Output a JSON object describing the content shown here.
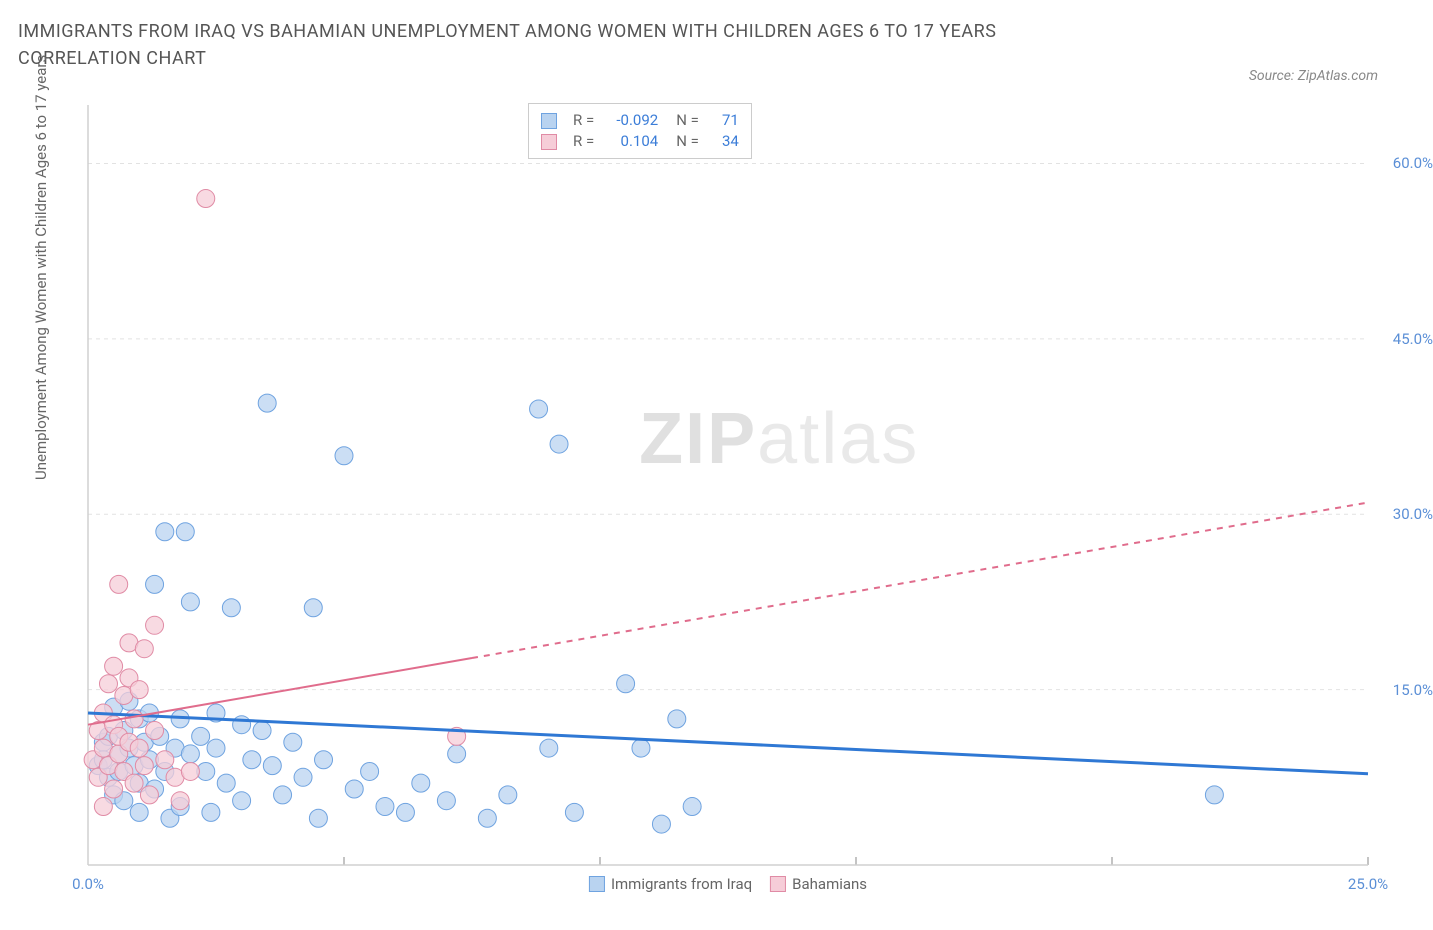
{
  "title": "IMMIGRANTS FROM IRAQ VS BAHAMIAN UNEMPLOYMENT AMONG WOMEN WITH CHILDREN AGES 6 TO 17 YEARS CORRELATION CHART",
  "source": "Source: ZipAtlas.com",
  "watermark_zip": "ZIP",
  "watermark_atlas": "atlas",
  "y_axis_label": "Unemployment Among Women with Children Ages 6 to 17 years",
  "chart": {
    "type": "scatter-with-trendlines",
    "background_color": "#ffffff",
    "grid_color": "#e2e2e2",
    "axis_color": "#d0d0d0",
    "tick_color": "#888",
    "tick_label_color": "#5b8fd6",
    "xlim": [
      0,
      25
    ],
    "ylim": [
      0,
      65
    ],
    "x_ticks": [
      0,
      5,
      10,
      15,
      20,
      25
    ],
    "x_tick_labels": {
      "0": "0.0%",
      "25": "25.0%"
    },
    "y_ticks": [
      15,
      30,
      45,
      60
    ],
    "y_tick_labels": {
      "15": "15.0%",
      "30": "30.0%",
      "45": "45.0%",
      "60": "60.0%"
    },
    "series": [
      {
        "name": "Immigrants from Iraq",
        "color_fill": "#b9d3f0",
        "color_stroke": "#6fa3e0",
        "marker_radius": 9,
        "trend": {
          "color": "#2f78d4",
          "width": 3,
          "x1": 0,
          "y1": 13.0,
          "x2": 25,
          "y2": 7.8,
          "dash_after_x": null
        },
        "stats": {
          "R": "-0.092",
          "N": "71"
        },
        "points": [
          [
            0.2,
            8.5
          ],
          [
            0.3,
            10.5
          ],
          [
            0.3,
            9.0
          ],
          [
            0.4,
            7.5
          ],
          [
            0.4,
            11.0
          ],
          [
            0.5,
            13.5
          ],
          [
            0.5,
            6.0
          ],
          [
            0.6,
            9.5
          ],
          [
            0.6,
            8.0
          ],
          [
            0.7,
            11.5
          ],
          [
            0.7,
            5.5
          ],
          [
            0.8,
            10.0
          ],
          [
            0.8,
            14.0
          ],
          [
            0.9,
            8.5
          ],
          [
            1.0,
            12.5
          ],
          [
            1.0,
            4.5
          ],
          [
            1.0,
            7.0
          ],
          [
            1.1,
            10.5
          ],
          [
            1.2,
            9.0
          ],
          [
            1.2,
            13.0
          ],
          [
            1.3,
            24.0
          ],
          [
            1.3,
            6.5
          ],
          [
            1.4,
            11.0
          ],
          [
            1.5,
            8.0
          ],
          [
            1.5,
            28.5
          ],
          [
            1.6,
            4.0
          ],
          [
            1.7,
            10.0
          ],
          [
            1.8,
            12.5
          ],
          [
            1.8,
            5.0
          ],
          [
            1.9,
            28.5
          ],
          [
            2.0,
            9.5
          ],
          [
            2.0,
            22.5
          ],
          [
            2.2,
            11.0
          ],
          [
            2.3,
            8.0
          ],
          [
            2.4,
            4.5
          ],
          [
            2.5,
            13.0
          ],
          [
            2.5,
            10.0
          ],
          [
            2.7,
            7.0
          ],
          [
            2.8,
            22.0
          ],
          [
            3.0,
            12.0
          ],
          [
            3.0,
            5.5
          ],
          [
            3.2,
            9.0
          ],
          [
            3.4,
            11.5
          ],
          [
            3.5,
            39.5
          ],
          [
            3.6,
            8.5
          ],
          [
            3.8,
            6.0
          ],
          [
            4.0,
            10.5
          ],
          [
            4.2,
            7.5
          ],
          [
            4.4,
            22.0
          ],
          [
            4.5,
            4.0
          ],
          [
            4.6,
            9.0
          ],
          [
            5.0,
            35.0
          ],
          [
            5.2,
            6.5
          ],
          [
            5.5,
            8.0
          ],
          [
            5.8,
            5.0
          ],
          [
            6.2,
            4.5
          ],
          [
            6.5,
            7.0
          ],
          [
            7.0,
            5.5
          ],
          [
            7.2,
            9.5
          ],
          [
            7.8,
            4.0
          ],
          [
            8.2,
            6.0
          ],
          [
            8.8,
            39.0
          ],
          [
            9.0,
            10.0
          ],
          [
            9.2,
            36.0
          ],
          [
            9.5,
            4.5
          ],
          [
            10.5,
            15.5
          ],
          [
            10.8,
            10.0
          ],
          [
            11.2,
            3.5
          ],
          [
            11.5,
            12.5
          ],
          [
            11.8,
            5.0
          ],
          [
            22.0,
            6.0
          ]
        ]
      },
      {
        "name": "Bahamians",
        "color_fill": "#f6cdd8",
        "color_stroke": "#e08ba5",
        "marker_radius": 9,
        "trend": {
          "color": "#e06c8c",
          "width": 2,
          "x1": 0,
          "y1": 12.0,
          "x2": 25,
          "y2": 31.0,
          "dash_after_x": 7.5
        },
        "stats": {
          "R": "0.104",
          "N": "34"
        },
        "points": [
          [
            0.1,
            9.0
          ],
          [
            0.2,
            11.5
          ],
          [
            0.2,
            7.5
          ],
          [
            0.3,
            13.0
          ],
          [
            0.3,
            10.0
          ],
          [
            0.3,
            5.0
          ],
          [
            0.4,
            8.5
          ],
          [
            0.4,
            15.5
          ],
          [
            0.5,
            12.0
          ],
          [
            0.5,
            6.5
          ],
          [
            0.5,
            17.0
          ],
          [
            0.6,
            9.5
          ],
          [
            0.6,
            11.0
          ],
          [
            0.6,
            24.0
          ],
          [
            0.7,
            14.5
          ],
          [
            0.7,
            8.0
          ],
          [
            0.8,
            10.5
          ],
          [
            0.8,
            16.0
          ],
          [
            0.8,
            19.0
          ],
          [
            0.9,
            12.5
          ],
          [
            0.9,
            7.0
          ],
          [
            1.0,
            15.0
          ],
          [
            1.0,
            10.0
          ],
          [
            1.1,
            18.5
          ],
          [
            1.1,
            8.5
          ],
          [
            1.2,
            6.0
          ],
          [
            1.3,
            11.5
          ],
          [
            1.3,
            20.5
          ],
          [
            1.5,
            9.0
          ],
          [
            1.7,
            7.5
          ],
          [
            1.8,
            5.5
          ],
          [
            2.0,
            8.0
          ],
          [
            2.3,
            57.0
          ],
          [
            7.2,
            11.0
          ]
        ]
      }
    ],
    "stats_box": {
      "rows": [
        {
          "swatch_fill": "#b9d3f0",
          "swatch_stroke": "#6fa3e0",
          "r_label": "R =",
          "r_val": "-0.092",
          "n_label": "N =",
          "n_val": "71"
        },
        {
          "swatch_fill": "#f6cdd8",
          "swatch_stroke": "#e08ba5",
          "r_label": "R =",
          "r_val": "0.104",
          "n_label": "N =",
          "n_val": "34"
        }
      ]
    },
    "bottom_legend": [
      {
        "swatch_fill": "#b9d3f0",
        "swatch_stroke": "#6fa3e0",
        "label": "Immigrants from Iraq"
      },
      {
        "swatch_fill": "#f6cdd8",
        "swatch_stroke": "#e08ba5",
        "label": "Bahamians"
      }
    ]
  }
}
